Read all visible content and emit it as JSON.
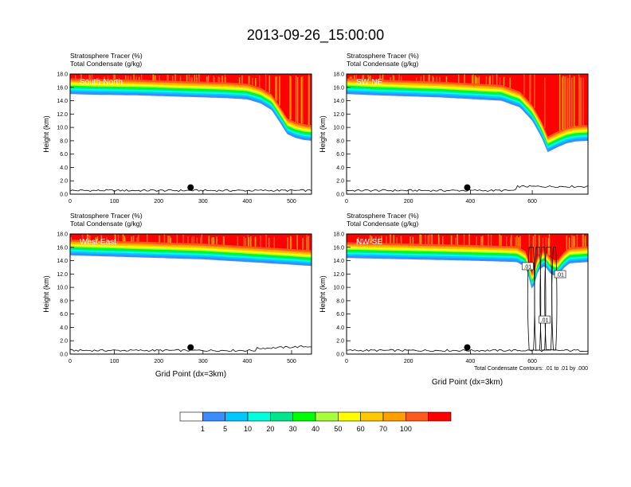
{
  "title": "2013-09-26_15:00:00",
  "colors": {
    "levels": [
      "#ffffff",
      "#3a8cff",
      "#00c8ff",
      "#00ffdc",
      "#00e68c",
      "#00ff00",
      "#a8ff3c",
      "#ffff00",
      "#ffc800",
      "#ffa000",
      "#ff5a1e",
      "#ff0000"
    ]
  },
  "colorbar": {
    "labels": [
      "1",
      "5",
      "10",
      "20",
      "30",
      "40",
      "50",
      "60",
      "70",
      "100"
    ]
  },
  "chart_data": [
    {
      "type": "heatmap",
      "label": "South-North",
      "field1": "Stratosphere Tracer   (%)",
      "field2": "Total Condensate   (g/kg)",
      "ylabel": "Height (km)",
      "xlabel": "",
      "xlim": [
        0,
        545
      ],
      "ylim": [
        0,
        18
      ],
      "xticks": [
        "0",
        "100",
        "200",
        "300",
        "400",
        "500"
      ],
      "xtick_values": [
        0,
        100,
        200,
        300,
        400,
        500
      ],
      "yticks": [
        "0.0",
        "2.0",
        "4.0",
        "6.0",
        "8.0",
        "10.0",
        "12.0",
        "14.0",
        "16.0",
        "18.0"
      ],
      "contour_note": "",
      "marker_x": 272,
      "marker_y": 1.0,
      "tracer_profile": {
        "x": [
          0,
          50,
          150,
          250,
          350,
          400,
          430,
          455,
          475,
          490,
          510,
          530,
          545
        ],
        "bottom_km": [
          15.0,
          14.9,
          14.8,
          14.6,
          14.4,
          14.2,
          13.6,
          12.6,
          10.6,
          9.0,
          8.4,
          8.1,
          8.0
        ]
      }
    },
    {
      "type": "heatmap",
      "label": "SW-NE",
      "field1": "Stratosphere Tracer   (%)",
      "field2": "Total Condensate   (g/kg)",
      "ylabel": "Height (km)",
      "xlabel": "",
      "xlim": [
        0,
        780
      ],
      "ylim": [
        0,
        18
      ],
      "xticks": [
        "0",
        "200",
        "400",
        "600"
      ],
      "xtick_values": [
        0,
        200,
        400,
        600
      ],
      "yticks": [
        "0.0",
        "2.0",
        "4.0",
        "6.0",
        "8.0",
        "10.0",
        "12.0",
        "14.0",
        "16.0",
        "18.0"
      ],
      "contour_note": "",
      "marker_x": 390,
      "marker_y": 1.0,
      "tracer_profile": {
        "x": [
          0,
          100,
          300,
          500,
          560,
          600,
          630,
          650,
          680,
          710,
          740,
          780
        ],
        "bottom_km": [
          15.0,
          14.8,
          14.5,
          14.0,
          13.0,
          11.0,
          8.5,
          6.3,
          7.0,
          7.6,
          7.9,
          8.0
        ]
      }
    },
    {
      "type": "heatmap",
      "label": "West-East",
      "field1": "Stratosphere Tracer   (%)",
      "field2": "Total Condensate   (g/kg)",
      "ylabel": "Height (km)",
      "xlabel": "Grid Point (dx=3km)",
      "xlim": [
        0,
        545
      ],
      "ylim": [
        0,
        18
      ],
      "xticks": [
        "0",
        "100",
        "200",
        "300",
        "400",
        "500"
      ],
      "xtick_values": [
        0,
        100,
        200,
        300,
        400,
        500
      ],
      "yticks": [
        "0.0",
        "2.0",
        "4.0",
        "6.0",
        "8.0",
        "10.0",
        "12.0",
        "14.0",
        "16.0",
        "18.0"
      ],
      "contour_note": "",
      "marker_x": 272,
      "marker_y": 1.0,
      "tracer_profile": {
        "x": [
          0,
          100,
          200,
          300,
          400,
          500,
          545
        ],
        "bottom_km": [
          14.8,
          14.6,
          14.4,
          14.2,
          13.8,
          13.4,
          13.2
        ]
      }
    },
    {
      "type": "heatmap",
      "label": "NW-SE",
      "field1": "Stratosphere Tracer   (%)",
      "field2": "Total Condensate   (g/kg)",
      "ylabel": "Height (km)",
      "xlabel": "Grid Point (dx=3km)",
      "xlim": [
        0,
        780
      ],
      "ylim": [
        0,
        18
      ],
      "xticks": [
        "0",
        "200",
        "400",
        "600"
      ],
      "xtick_values": [
        0,
        200,
        400,
        600
      ],
      "yticks": [
        "0.0",
        "2.0",
        "4.0",
        "6.0",
        "8.0",
        "10.0",
        "12.0",
        "14.0",
        "16.0",
        "18.0"
      ],
      "contour_note": "Total Condensate Contours: .01 to .01 by .000",
      "contour_labels": [
        ".01",
        ".01",
        ".01"
      ],
      "marker_x": 390,
      "marker_y": 1.0,
      "tracer_profile": {
        "x": [
          0,
          200,
          400,
          550,
          580,
          600,
          620,
          640,
          660,
          680,
          700,
          720,
          780
        ],
        "bottom_km": [
          14.4,
          14.2,
          14.0,
          13.8,
          13.0,
          9.5,
          12.6,
          13.2,
          12.0,
          11.6,
          12.8,
          13.6,
          13.8
        ]
      }
    }
  ]
}
